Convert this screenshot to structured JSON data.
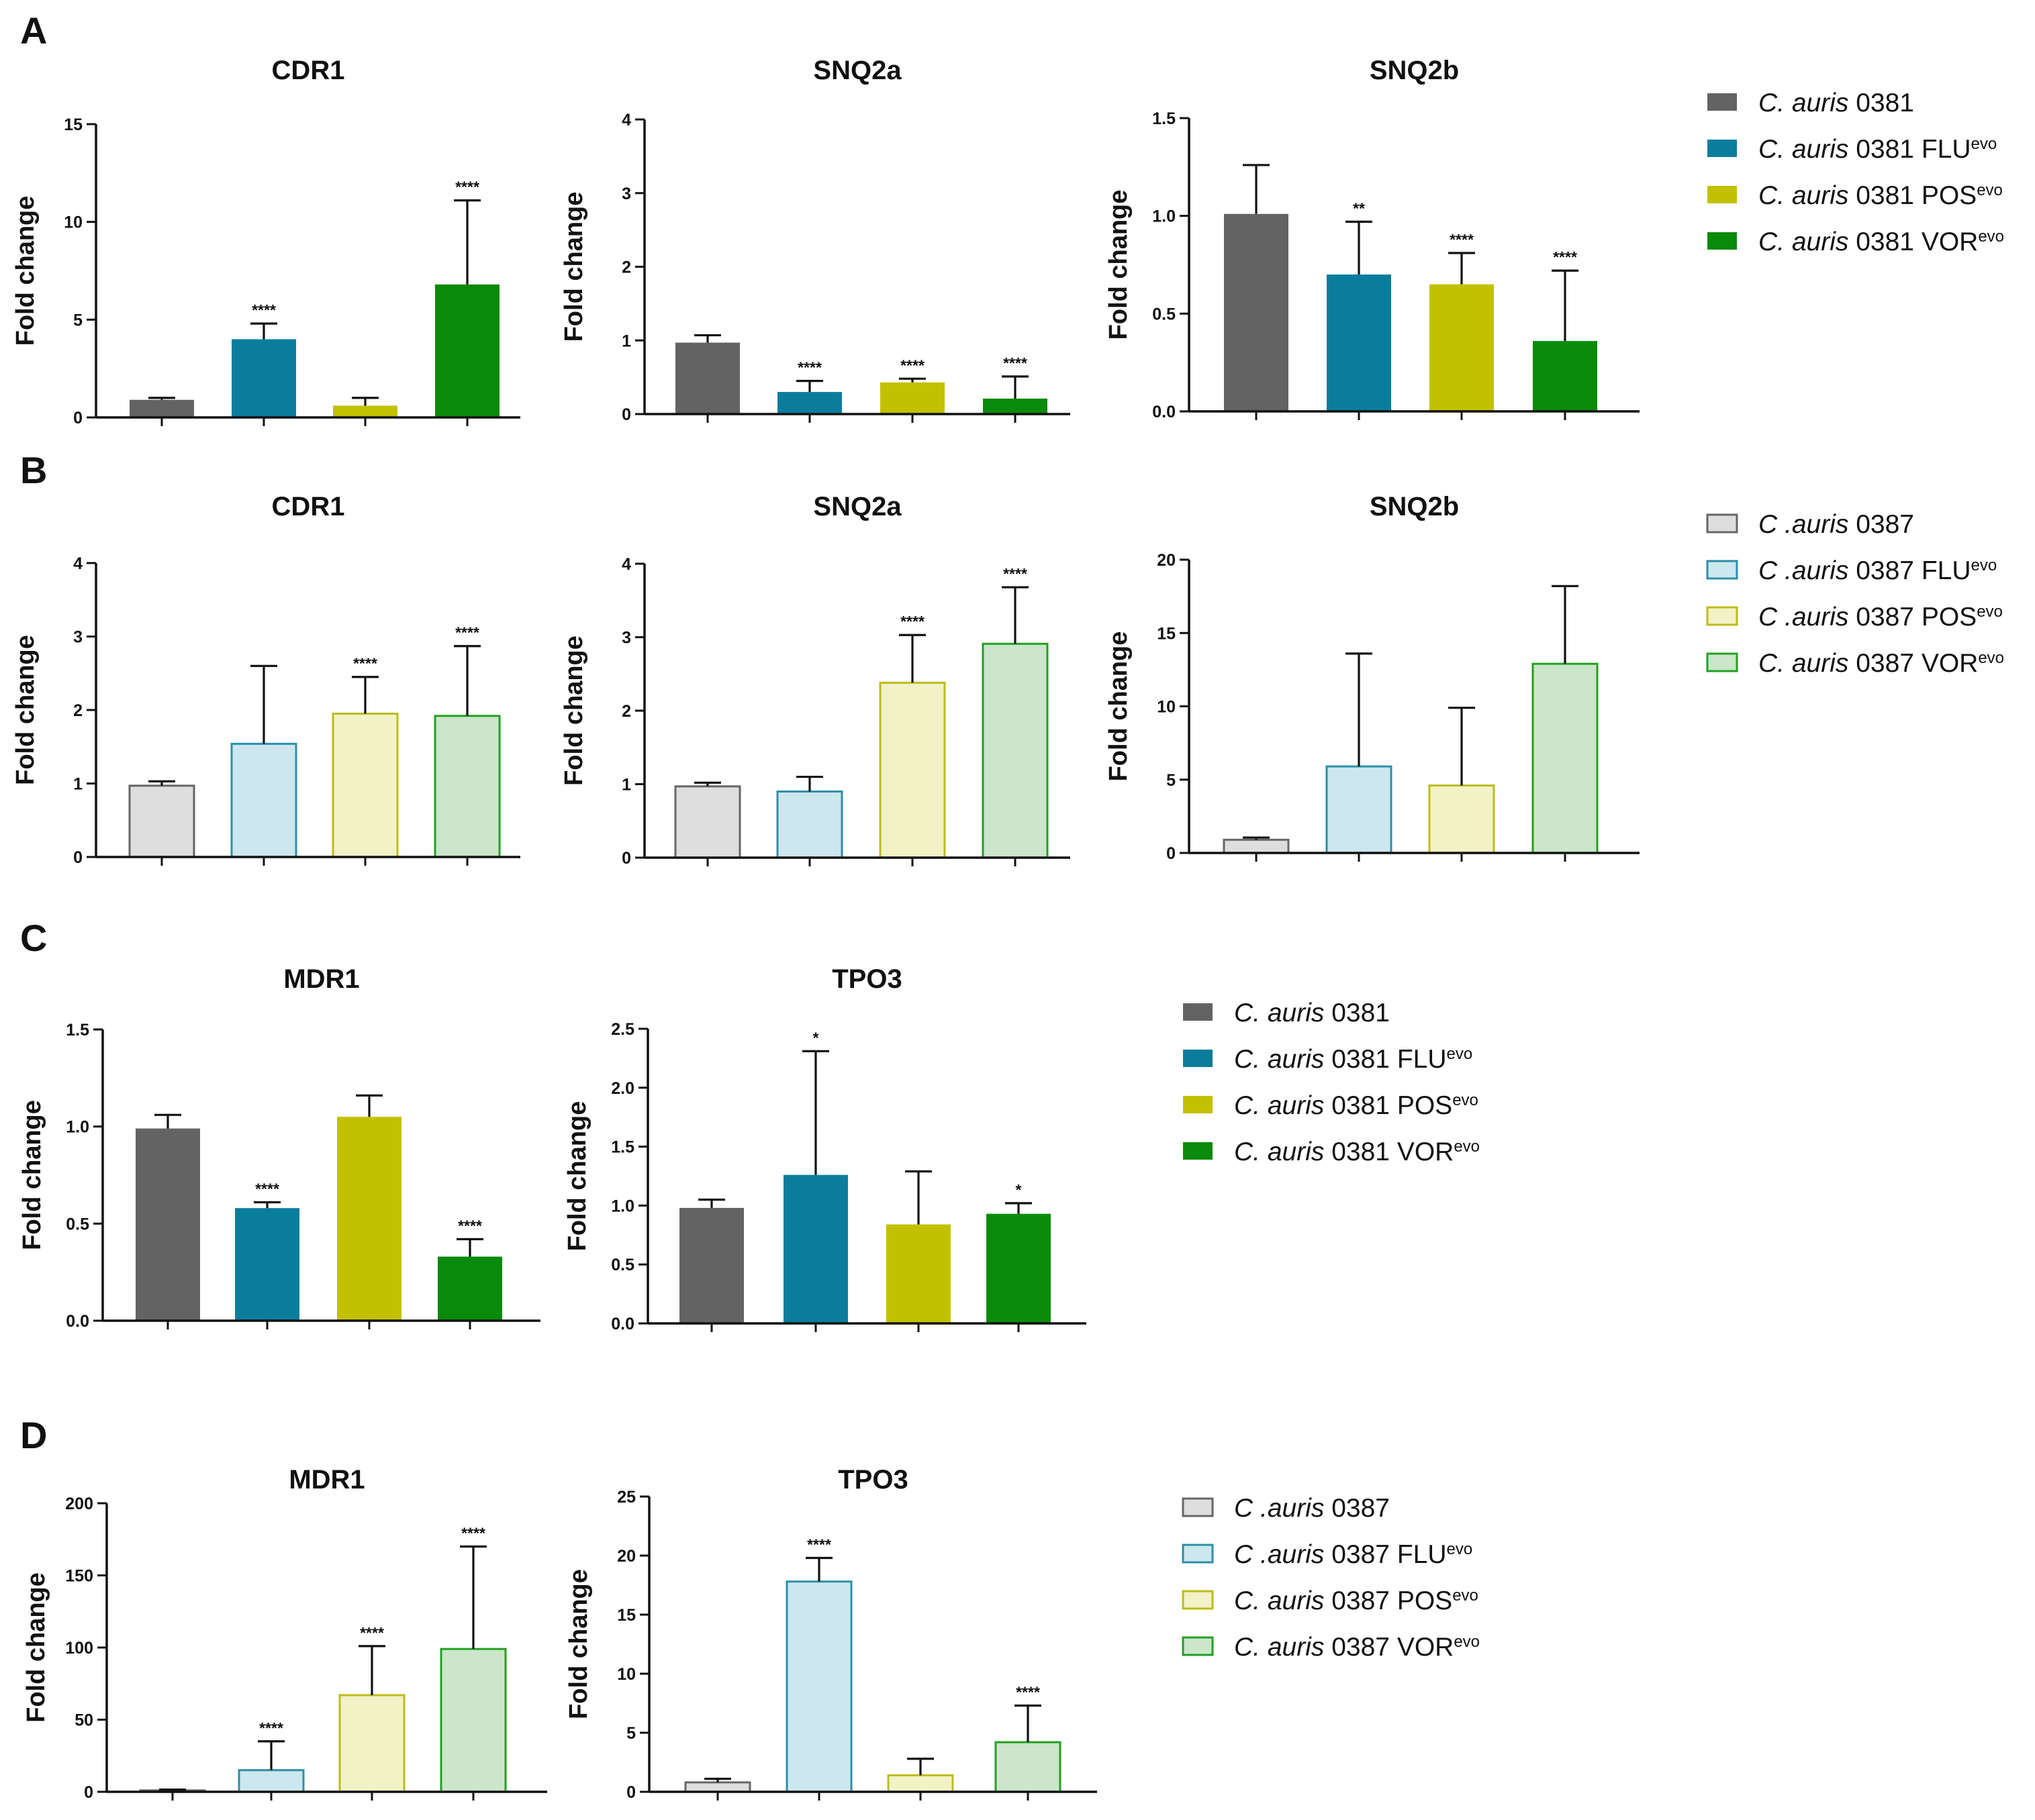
{
  "colors": {
    "dark": {
      "grey": "#636363",
      "teal": "#0a7d9c",
      "olive": "#c2c100",
      "green": "#0a8a0a"
    },
    "light_fill": {
      "grey": "#dedede",
      "teal": "#cde7ee",
      "olive": "#f1f2c6",
      "green": "#cbe6cb"
    },
    "light_edge": {
      "grey": "#666666",
      "teal": "#2c8fa8",
      "olive": "#bcbc1c",
      "green": "#22a022"
    }
  },
  "panels": [
    {
      "letter": "A"
    },
    {
      "letter": "B"
    },
    {
      "letter": "C"
    },
    {
      "letter": "D"
    }
  ],
  "legends": [
    {
      "id": "A",
      "style": "dark",
      "items": [
        {
          "species": "C. auris",
          "strain": " 0381",
          "drug": "",
          "sup": ""
        },
        {
          "species": "C. auris",
          "strain": " 0381 ",
          "drug": "FLU",
          "sup": "evo"
        },
        {
          "species": "C. auris",
          "strain": " 0381 ",
          "drug": "POS",
          "sup": "evo"
        },
        {
          "species": "C. auris",
          "strain": " 0381 ",
          "drug": "VOR",
          "sup": "evo"
        }
      ]
    },
    {
      "id": "B",
      "style": "light",
      "items": [
        {
          "species": "C .auris",
          "strain": " 0387",
          "drug": "",
          "sup": ""
        },
        {
          "species": "C .auris",
          "strain": " 0387 ",
          "drug": "FLU",
          "sup": "evo"
        },
        {
          "species": "C .auris",
          "strain": " 0387 ",
          "drug": "POS",
          "sup": "evo"
        },
        {
          "species": "C. auris",
          "strain": " 0387 ",
          "drug": "VOR",
          "sup": "evo"
        }
      ]
    },
    {
      "id": "C",
      "style": "dark",
      "items": [
        {
          "species": "C. auris",
          "strain": " 0381",
          "drug": "",
          "sup": ""
        },
        {
          "species": "C. auris",
          "strain": " 0381 ",
          "drug": "FLU",
          "sup": "evo"
        },
        {
          "species": "C. auris",
          "strain": " 0381 ",
          "drug": "POS",
          "sup": "evo"
        },
        {
          "species": "C. auris",
          "strain": " 0381 ",
          "drug": "VOR",
          "sup": "evo"
        }
      ]
    },
    {
      "id": "D",
      "style": "light",
      "items": [
        {
          "species": "C .auris",
          "strain": " 0387",
          "drug": "",
          "sup": ""
        },
        {
          "species": "C .auris",
          "strain": " 0387 ",
          "drug": "FLU",
          "sup": "evo"
        },
        {
          "species": "C. auris",
          "strain": " 0387 ",
          "drug": "POS",
          "sup": "evo"
        },
        {
          "species": "C. auris",
          "strain": " 0387 ",
          "drug": "VOR",
          "sup": "evo"
        }
      ]
    }
  ],
  "chart_data": [
    {
      "id": "A-CDR1",
      "panel": "A",
      "type": "bar",
      "title": "CDR1",
      "ylabel": "Fold change",
      "style": "dark",
      "ylim": [
        0,
        15
      ],
      "yticks": [
        0,
        5,
        10,
        15
      ],
      "tick_labels": [
        "0",
        "5",
        "10",
        "15"
      ],
      "values": [
        0.9,
        4.0,
        0.6,
        6.8
      ],
      "errors": [
        0.1,
        0.8,
        0.4,
        4.3
      ],
      "significance": [
        "",
        "****",
        "",
        "****"
      ]
    },
    {
      "id": "A-SNQ2a",
      "panel": "A",
      "type": "bar",
      "title": "SNQ2a",
      "ylabel": "Fold change",
      "style": "dark",
      "ylim": [
        0,
        4
      ],
      "yticks": [
        0,
        1,
        2,
        3,
        4
      ],
      "tick_labels": [
        "0",
        "1",
        "2",
        "3",
        "4"
      ],
      "values": [
        0.97,
        0.3,
        0.43,
        0.21
      ],
      "errors": [
        0.1,
        0.15,
        0.05,
        0.3
      ],
      "significance": [
        "",
        "****",
        "****",
        "****"
      ]
    },
    {
      "id": "A-SNQ2b",
      "panel": "A",
      "type": "bar",
      "title": "SNQ2b",
      "ylabel": "Fold change",
      "style": "dark",
      "ylim": [
        0,
        1.5
      ],
      "yticks": [
        0,
        0.5,
        1.0,
        1.5
      ],
      "tick_labels": [
        "0.0",
        "0.5",
        "1.0",
        "1.5"
      ],
      "values": [
        1.01,
        0.7,
        0.65,
        0.36
      ],
      "errors": [
        0.25,
        0.27,
        0.16,
        0.36
      ],
      "significance": [
        "",
        "**",
        "****",
        "****"
      ]
    },
    {
      "id": "B-CDR1",
      "panel": "B",
      "type": "bar",
      "title": "CDR1",
      "ylabel": "Fold change",
      "style": "light",
      "ylim": [
        0,
        4
      ],
      "yticks": [
        0,
        1,
        2,
        3,
        4
      ],
      "tick_labels": [
        "0",
        "1",
        "2",
        "3",
        "4"
      ],
      "values": [
        0.97,
        1.54,
        1.95,
        1.92
      ],
      "errors": [
        0.06,
        1.06,
        0.5,
        0.95
      ],
      "significance": [
        "",
        "",
        "****",
        "****"
      ]
    },
    {
      "id": "B-SNQ2a",
      "panel": "B",
      "type": "bar",
      "title": "SNQ2a",
      "ylabel": "Fold change",
      "style": "light",
      "ylim": [
        0,
        4
      ],
      "yticks": [
        0,
        1,
        2,
        3,
        4
      ],
      "tick_labels": [
        "0",
        "1",
        "2",
        "3",
        "4"
      ],
      "values": [
        0.97,
        0.9,
        2.38,
        2.91
      ],
      "errors": [
        0.05,
        0.2,
        0.65,
        0.77
      ],
      "significance": [
        "",
        "",
        "****",
        "****"
      ]
    },
    {
      "id": "B-SNQ2b",
      "panel": "B",
      "type": "bar",
      "title": "SNQ2b",
      "ylabel": "Fold change",
      "style": "light",
      "ylim": [
        0,
        20
      ],
      "yticks": [
        0,
        5,
        10,
        15,
        20
      ],
      "tick_labels": [
        "0",
        "5",
        "10",
        "15",
        "20"
      ],
      "values": [
        0.9,
        5.9,
        4.6,
        12.9
      ],
      "errors": [
        0.15,
        7.7,
        5.3,
        5.3
      ],
      "significance": [
        "",
        "",
        "",
        ""
      ]
    },
    {
      "id": "C-MDR1",
      "panel": "C",
      "type": "bar",
      "title": "MDR1",
      "ylabel": "Fold change",
      "style": "dark",
      "ylim": [
        0,
        1.5
      ],
      "yticks": [
        0,
        0.5,
        1.0,
        1.5
      ],
      "tick_labels": [
        "0.0",
        "0.5",
        "1.0",
        "1.5"
      ],
      "values": [
        0.99,
        0.58,
        1.05,
        0.33
      ],
      "errors": [
        0.07,
        0.03,
        0.11,
        0.09
      ],
      "significance": [
        "",
        "****",
        "",
        "****"
      ]
    },
    {
      "id": "C-TPO3",
      "panel": "C",
      "type": "bar",
      "title": "TPO3",
      "ylabel": "Fold change",
      "style": "dark",
      "ylim": [
        0,
        2.5
      ],
      "yticks": [
        0,
        0.5,
        1.0,
        1.5,
        2.0,
        2.5
      ],
      "tick_labels": [
        "0.0",
        "0.5",
        "1.0",
        "1.5",
        "2.0",
        "2.5"
      ],
      "values": [
        0.98,
        1.26,
        0.84,
        0.93
      ],
      "errors": [
        0.07,
        1.05,
        0.45,
        0.09
      ],
      "significance": [
        "",
        "*",
        "",
        "*"
      ]
    },
    {
      "id": "D-MDR1",
      "panel": "D",
      "type": "bar",
      "title": "MDR1",
      "ylabel": "Fold change",
      "style": "light",
      "ylim": [
        0,
        200
      ],
      "yticks": [
        0,
        50,
        100,
        150,
        200
      ],
      "tick_labels": [
        "0",
        "50",
        "100",
        "150",
        "200"
      ],
      "values": [
        1,
        15,
        67,
        99
      ],
      "errors": [
        0.5,
        20,
        34,
        71
      ],
      "significance": [
        "",
        "****",
        "****",
        "****"
      ]
    },
    {
      "id": "D-TPO3",
      "panel": "D",
      "type": "bar",
      "title": "TPO3",
      "ylabel": "Fold change",
      "style": "light",
      "ylim": [
        0,
        25
      ],
      "yticks": [
        0,
        5,
        10,
        15,
        20,
        25
      ],
      "tick_labels": [
        "0",
        "5",
        "10",
        "15",
        "20",
        "25"
      ],
      "values": [
        0.8,
        17.8,
        1.4,
        4.2
      ],
      "errors": [
        0.3,
        2.0,
        1.4,
        3.1
      ],
      "significance": [
        "",
        "****",
        "",
        "****"
      ]
    }
  ]
}
